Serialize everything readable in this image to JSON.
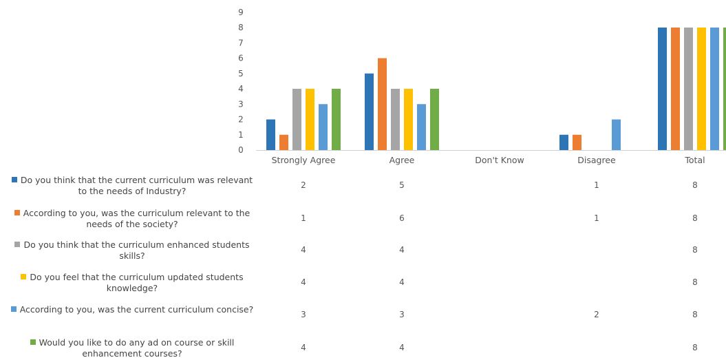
{
  "chart_data": {
    "type": "bar",
    "categories": [
      "Strongly Agree",
      "Agree",
      "Don't Know",
      "Disagree",
      "Total"
    ],
    "ylim": [
      0,
      9
    ],
    "yticks": [
      0,
      1,
      2,
      3,
      4,
      5,
      6,
      7,
      8,
      9
    ],
    "series": [
      {
        "name": "Do you think that the current curriculum was relevant to the needs of Industry?",
        "color": "#2E75B6",
        "values": [
          2,
          5,
          null,
          1,
          8
        ]
      },
      {
        "name": "According to you, was the curriculum relevant to the needs of the society?",
        "color": "#ED7D31",
        "values": [
          1,
          6,
          null,
          1,
          8
        ]
      },
      {
        "name": "Do you think that the curriculum enhanced students skills?",
        "color": "#A5A5A5",
        "values": [
          4,
          4,
          null,
          null,
          8
        ]
      },
      {
        "name": "Do you feel that the curriculum updated students knowledge?",
        "color": "#FFC000",
        "values": [
          4,
          4,
          null,
          null,
          8
        ]
      },
      {
        "name": "According to you, was the current curriculum concise?",
        "color": "#5B9BD5",
        "values": [
          3,
          3,
          null,
          2,
          8
        ]
      },
      {
        "name": "Would you like to do any ad on course or skill enhancement courses?",
        "color": "#70AD47",
        "values": [
          4,
          4,
          null,
          null,
          8
        ]
      }
    ]
  }
}
